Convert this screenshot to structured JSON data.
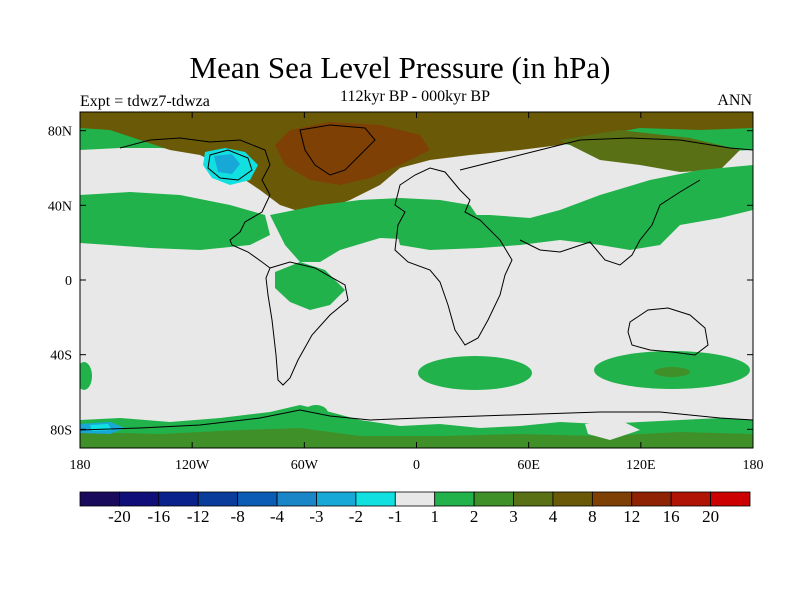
{
  "header": {
    "title": "Mean Sea Level Pressure (in hPa)",
    "experiment": "Expt = tdwz7-tdwza",
    "period": "112kyr BP - 000kyr BP",
    "season": "ANN"
  },
  "map": {
    "projection": "cylindrical-equidistant",
    "lon_range": [
      -180,
      180
    ],
    "lat_range": [
      -90,
      90
    ],
    "x_ticks": [
      "180",
      "120W",
      "60W",
      "0",
      "60E",
      "120E",
      "180"
    ],
    "y_ticks": [
      "80N",
      "40N",
      "0",
      "40S",
      "80S"
    ],
    "background_color": "#e8e8e8"
  },
  "colorbar": {
    "colors": [
      "#1a0a5c",
      "#100e78",
      "#0a238c",
      "#0a3c9c",
      "#0a5cb4",
      "#1a86c8",
      "#18a8d8",
      "#10e0e0",
      "#e8e8e8",
      "#22b24c",
      "#40902a",
      "#5a7014",
      "#6a5a08",
      "#7e4004",
      "#902204",
      "#b01404",
      "#cc0000"
    ],
    "labels": [
      "-20",
      "-16",
      "-12",
      "-8",
      "-4",
      "-3",
      "-2",
      "-1",
      "1",
      "2",
      "3",
      "4",
      "8",
      "12",
      "16",
      "20"
    ]
  }
}
